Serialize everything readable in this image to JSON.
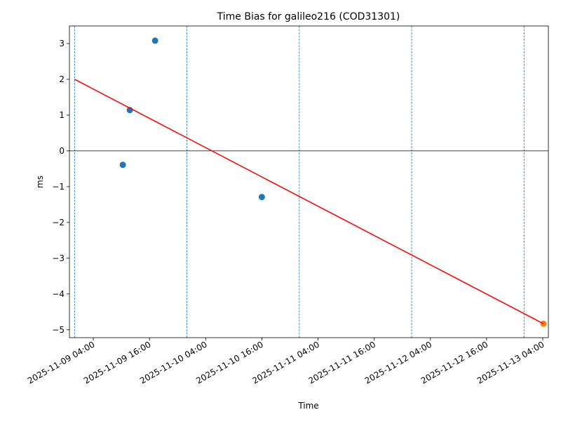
{
  "chart_data": {
    "type": "scatter",
    "title": "Time Bias for galileo216 (COD31301)",
    "x_label": "Time",
    "y_label": "ms",
    "xlim": [
      "2025-11-08 22:54",
      "2025-11-13 05:12"
    ],
    "xticks": [
      "2025-11-09 04:00",
      "2025-11-09 16:00",
      "2025-11-10 04:00",
      "2025-11-10 16:00",
      "2025-11-11 04:00",
      "2025-11-11 16:00",
      "2025-11-12 04:00",
      "2025-11-12 16:00",
      "2025-11-13 04:00"
    ],
    "ylim": [
      -5.22,
      3.49
    ],
    "yticks": [
      {
        "value": -5,
        "label": "−5"
      },
      {
        "value": -4,
        "label": "−4"
      },
      {
        "value": -3,
        "label": "−3"
      },
      {
        "value": -2,
        "label": "−2"
      },
      {
        "value": -1,
        "label": "−1"
      },
      0,
      1,
      2,
      3
    ],
    "hline": 0,
    "vlines": [
      "2025-11-09 00:00",
      "2025-11-10 00:00",
      "2025-11-11 00:00",
      "2025-11-12 00:00",
      "2025-11-13 00:00"
    ],
    "vline_color": "#1f77b4",
    "series": [
      {
        "type": "scatter",
        "color": "#1f77b4",
        "x": [
          "2025-11-09 10:18",
          "2025-11-09 11:48",
          "2025-11-09 17:12",
          "2025-11-10 16:00"
        ],
        "values": [
          -0.39,
          1.14,
          3.08,
          -1.29
        ]
      },
      {
        "type": "scatter",
        "color": "#ff7f0e",
        "x": [
          "2025-11-13 04:09"
        ],
        "values": [
          -4.83
        ]
      },
      {
        "type": "line",
        "color": "#ff0000",
        "x": [
          "2025-11-09 00:00",
          "2025-11-13 04:09"
        ],
        "values": [
          2.0,
          -4.83
        ]
      }
    ]
  }
}
